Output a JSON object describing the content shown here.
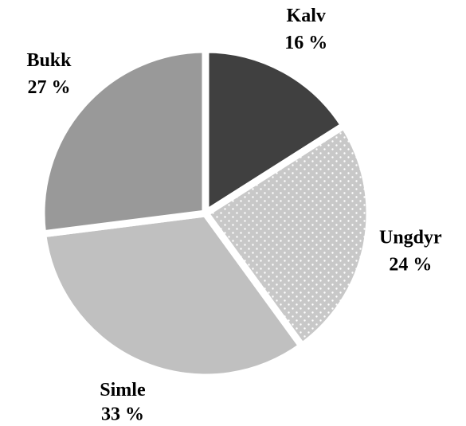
{
  "chart_data": {
    "type": "pie",
    "categories": [
      "Kalv",
      "Ungdyr",
      "Simle",
      "Bukk"
    ],
    "values": [
      16,
      24,
      33,
      27
    ],
    "value_labels": [
      "16 %",
      "24 %",
      "33 %",
      "27 %"
    ],
    "colors": [
      "#404040",
      "#c8c8c8",
      "#c0c0c0",
      "#999999"
    ],
    "patterns": [
      null,
      "dots",
      null,
      null
    ]
  }
}
